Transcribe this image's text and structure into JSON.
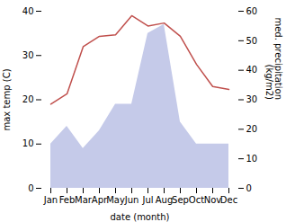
{
  "chart_data": {
    "type": "combo",
    "categories": [
      "Jan",
      "Feb",
      "Mar",
      "Apr",
      "May",
      "Jun",
      "Jul",
      "Aug",
      "Sep",
      "Oct",
      "Nov",
      "Dec"
    ],
    "series": [
      {
        "type": "area",
        "color": "#c5cae9",
        "values": [
          10.0,
          14.0,
          9.0,
          13.0,
          19.0,
          19.0,
          35.0,
          37.0,
          15.0,
          10.0,
          10.0,
          10.0
        ]
      },
      {
        "type": "line",
        "color": "#c0504d",
        "axis": "y2",
        "values": [
          28.5,
          32.0,
          48.0,
          51.5,
          52.0,
          58.5,
          55.0,
          56.0,
          51.5,
          42.0,
          34.5,
          33.5
        ]
      }
    ],
    "xlabel": "date (month)",
    "ylabel": "max temp (C)",
    "y2label": "med. precipitation\n(kg/m2)",
    "ylim": [
      0,
      40
    ],
    "yticks": [
      0,
      10,
      20,
      30,
      40
    ],
    "y2lim": [
      0,
      60
    ],
    "y2ticks": [
      0,
      10,
      20,
      30,
      40,
      50,
      60
    ]
  }
}
